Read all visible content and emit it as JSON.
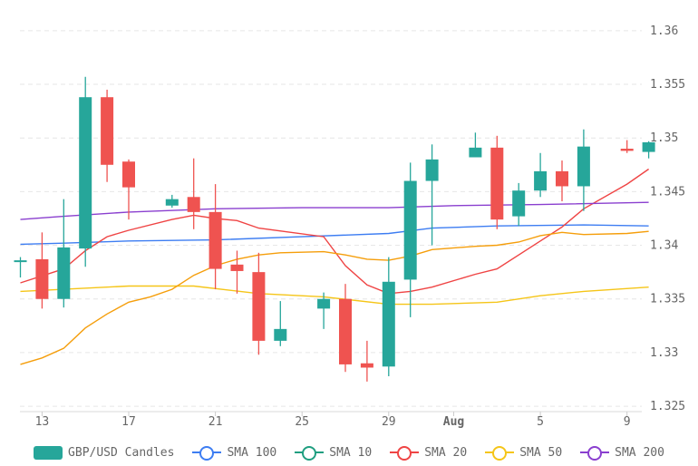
{
  "chart_data": {
    "type": "candlestick",
    "y_axis": {
      "position": "right",
      "ylim": [
        1.325,
        1.36
      ],
      "ticks": [
        "1.36",
        "1.355",
        "1.35",
        "1.345",
        "1.34",
        "1.335",
        "1.33",
        "1.325"
      ]
    },
    "x_axis": {
      "ticks": [
        "13",
        "17",
        "21",
        "25",
        "29",
        "Aug",
        "5",
        "9"
      ],
      "tick_dates": [
        "2021-07-13",
        "2021-07-17",
        "2021-07-21",
        "2021-07-25",
        "2021-07-29",
        "2021-08-01",
        "2021-08-05",
        "2021-08-09"
      ]
    },
    "grid": {
      "horizontal": true,
      "style": "dashed"
    },
    "legend_position": "bottom",
    "candles": {
      "name": "GBP/USD Candles",
      "up_color": "#26a69a",
      "down_color": "#ef5350",
      "data": [
        {
          "date": "2021-07-12",
          "open": 1.3386,
          "high": 1.3389,
          "low": 1.337,
          "close": 1.3386
        },
        {
          "date": "2021-07-13",
          "open": 1.3387,
          "high": 1.3412,
          "low": 1.3341,
          "close": 1.335
        },
        {
          "date": "2021-07-14",
          "open": 1.335,
          "high": 1.3443,
          "low": 1.3342,
          "close": 1.3398
        },
        {
          "date": "2021-07-15",
          "open": 1.3397,
          "high": 1.3557,
          "low": 1.338,
          "close": 1.3538
        },
        {
          "date": "2021-07-16",
          "open": 1.3538,
          "high": 1.3545,
          "low": 1.3459,
          "close": 1.3475
        },
        {
          "date": "2021-07-17",
          "open": 1.3478,
          "high": 1.348,
          "low": 1.3424,
          "close": 1.3454
        },
        {
          "date": "2021-07-19",
          "open": 1.3437,
          "high": 1.3447,
          "low": 1.3435,
          "close": 1.3443
        },
        {
          "date": "2021-07-20",
          "open": 1.3445,
          "high": 1.3481,
          "low": 1.3415,
          "close": 1.3431
        },
        {
          "date": "2021-07-21",
          "open": 1.3431,
          "high": 1.3457,
          "low": 1.3359,
          "close": 1.3378
        },
        {
          "date": "2021-07-22",
          "open": 1.3382,
          "high": 1.3395,
          "low": 1.3355,
          "close": 1.3376
        },
        {
          "date": "2021-07-23",
          "open": 1.3375,
          "high": 1.3393,
          "low": 1.3298,
          "close": 1.3311
        },
        {
          "date": "2021-07-24",
          "open": 1.3311,
          "high": 1.3348,
          "low": 1.3306,
          "close": 1.3322
        },
        {
          "date": "2021-07-26",
          "open": 1.3341,
          "high": 1.3356,
          "low": 1.3322,
          "close": 1.335
        },
        {
          "date": "2021-07-27",
          "open": 1.335,
          "high": 1.3364,
          "low": 1.3282,
          "close": 1.3289
        },
        {
          "date": "2021-07-28",
          "open": 1.329,
          "high": 1.3311,
          "low": 1.3273,
          "close": 1.3286
        },
        {
          "date": "2021-07-29",
          "open": 1.3287,
          "high": 1.3389,
          "low": 1.3278,
          "close": 1.3366
        },
        {
          "date": "2021-07-30",
          "open": 1.3368,
          "high": 1.3477,
          "low": 1.3333,
          "close": 1.346
        },
        {
          "date": "2021-07-31",
          "open": 1.346,
          "high": 1.3494,
          "low": 1.34,
          "close": 1.348
        },
        {
          "date": "2021-08-02",
          "open": 1.3482,
          "high": 1.3505,
          "low": 1.3482,
          "close": 1.3491
        },
        {
          "date": "2021-08-03",
          "open": 1.3491,
          "high": 1.3502,
          "low": 1.3415,
          "close": 1.3424
        },
        {
          "date": "2021-08-04",
          "open": 1.3427,
          "high": 1.3458,
          "low": 1.3418,
          "close": 1.3451
        },
        {
          "date": "2021-08-05",
          "open": 1.3451,
          "high": 1.3486,
          "low": 1.3445,
          "close": 1.3469
        },
        {
          "date": "2021-08-06",
          "open": 1.3469,
          "high": 1.3479,
          "low": 1.3441,
          "close": 1.3455
        },
        {
          "date": "2021-08-07",
          "open": 1.3455,
          "high": 1.3508,
          "low": 1.3432,
          "close": 1.3492
        },
        {
          "date": "2021-08-09",
          "open": 1.349,
          "high": 1.3498,
          "low": 1.3486,
          "close": 1.3488
        },
        {
          "date": "2021-08-10",
          "open": 1.3487,
          "high": 1.3497,
          "low": 1.3481,
          "close": 1.3496
        }
      ]
    },
    "series": [
      {
        "name": "SMA 100",
        "color": "#3d7df2",
        "values": [
          [
            "2021-07-12",
            1.3401
          ],
          [
            "2021-07-14",
            1.3402
          ],
          [
            "2021-07-17",
            1.3404
          ],
          [
            "2021-07-21",
            1.3405
          ],
          [
            "2021-07-25",
            1.3408
          ],
          [
            "2021-07-29",
            1.3411
          ],
          [
            "2021-07-31",
            1.3416
          ],
          [
            "2021-08-03",
            1.3418
          ],
          [
            "2021-08-07",
            1.3419
          ],
          [
            "2021-08-10",
            1.3418
          ]
        ]
      },
      {
        "name": "SMA 10",
        "color": "#1f9e80",
        "values": []
      },
      {
        "name": "SMA 20",
        "color": "#ef4444",
        "values": [
          [
            "2021-07-12",
            1.3365
          ],
          [
            "2021-07-14",
            1.3378
          ],
          [
            "2021-07-15",
            1.3395
          ],
          [
            "2021-07-16",
            1.3408
          ],
          [
            "2021-07-17",
            1.3414
          ],
          [
            "2021-07-19",
            1.3424
          ],
          [
            "2021-07-20",
            1.3428
          ],
          [
            "2021-07-21",
            1.3425
          ],
          [
            "2021-07-22",
            1.3423
          ],
          [
            "2021-07-23",
            1.3416
          ],
          [
            "2021-07-26",
            1.3408
          ],
          [
            "2021-07-27",
            1.3381
          ],
          [
            "2021-07-28",
            1.3363
          ],
          [
            "2021-07-29",
            1.3355
          ],
          [
            "2021-07-30",
            1.3357
          ],
          [
            "2021-07-31",
            1.3361
          ],
          [
            "2021-08-02",
            1.3373
          ],
          [
            "2021-08-03",
            1.3378
          ],
          [
            "2021-08-05",
            1.3404
          ],
          [
            "2021-08-06",
            1.3417
          ],
          [
            "2021-08-07",
            1.3434
          ],
          [
            "2021-08-09",
            1.3457
          ],
          [
            "2021-08-10",
            1.3471
          ]
        ]
      },
      {
        "name": "SMA 50",
        "color": "#f5c518",
        "values": [
          [
            "2021-07-12",
            1.3357
          ],
          [
            "2021-07-14",
            1.3359
          ],
          [
            "2021-07-17",
            1.3362
          ],
          [
            "2021-07-20",
            1.3362
          ],
          [
            "2021-07-23",
            1.3355
          ],
          [
            "2021-07-26",
            1.3352
          ],
          [
            "2021-07-29",
            1.3345
          ],
          [
            "2021-07-31",
            1.3345
          ],
          [
            "2021-08-03",
            1.3347
          ],
          [
            "2021-08-05",
            1.3353
          ],
          [
            "2021-08-07",
            1.3357
          ],
          [
            "2021-08-10",
            1.3361
          ]
        ]
      },
      {
        "name": "SMA 200",
        "color": "#8a3fcf",
        "values": [
          [
            "2021-07-12",
            1.3424
          ],
          [
            "2021-07-14",
            1.3427
          ],
          [
            "2021-07-17",
            1.3431
          ],
          [
            "2021-07-21",
            1.3434
          ],
          [
            "2021-07-25",
            1.3435
          ],
          [
            "2021-07-29",
            1.3435
          ],
          [
            "2021-08-01",
            1.3437
          ],
          [
            "2021-08-05",
            1.3438
          ],
          [
            "2021-08-10",
            1.344
          ]
        ]
      },
      {
        "name": "",
        "color": "#f59e0b",
        "values": [
          [
            "2021-07-12",
            1.3289
          ],
          [
            "2021-07-13",
            1.3295
          ],
          [
            "2021-07-14",
            1.3304
          ],
          [
            "2021-07-15",
            1.3323
          ],
          [
            "2021-07-16",
            1.3336
          ],
          [
            "2021-07-17",
            1.3347
          ],
          [
            "2021-07-18",
            1.3352
          ],
          [
            "2021-07-19",
            1.3359
          ],
          [
            "2021-07-20",
            1.3372
          ],
          [
            "2021-07-21",
            1.3381
          ],
          [
            "2021-07-22",
            1.3387
          ],
          [
            "2021-07-23",
            1.3391
          ],
          [
            "2021-07-24",
            1.3393
          ],
          [
            "2021-07-26",
            1.3394
          ],
          [
            "2021-07-27",
            1.3391
          ],
          [
            "2021-07-28",
            1.3387
          ],
          [
            "2021-07-29",
            1.3386
          ],
          [
            "2021-07-30",
            1.339
          ],
          [
            "2021-07-31",
            1.3396
          ],
          [
            "2021-08-02",
            1.3399
          ],
          [
            "2021-08-03",
            1.34
          ],
          [
            "2021-08-04",
            1.3403
          ],
          [
            "2021-08-05",
            1.3409
          ],
          [
            "2021-08-06",
            1.3412
          ],
          [
            "2021-08-07",
            1.341
          ],
          [
            "2021-08-09",
            1.3411
          ],
          [
            "2021-08-10",
            1.3413
          ]
        ]
      }
    ]
  },
  "legend": [
    {
      "label": "GBP/USD Candles",
      "type": "rect",
      "color": "#26a69a"
    },
    {
      "label": "SMA 100",
      "type": "line",
      "color": "#3d7df2"
    },
    {
      "label": "SMA 10",
      "type": "line",
      "color": "#1f9e80"
    },
    {
      "label": "SMA 20",
      "type": "line",
      "color": "#ef4444"
    },
    {
      "label": "SMA 50",
      "type": "line",
      "color": "#f5c518"
    },
    {
      "label": "SMA 200",
      "type": "line",
      "color": "#8a3fcf"
    }
  ]
}
